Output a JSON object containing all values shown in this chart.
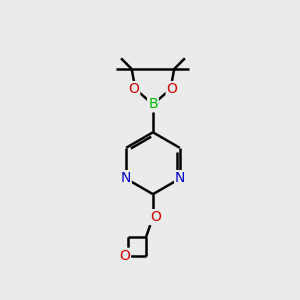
{
  "background_color": "#ebebeb",
  "bond_color": "#000000",
  "atom_colors": {
    "B": "#00bb00",
    "O": "#dd0000",
    "N": "#0000cc",
    "C": "#000000"
  },
  "bond_width": 1.8,
  "font_size_atoms": 10,
  "fig_size": [
    3.0,
    3.0
  ],
  "dpi": 100
}
